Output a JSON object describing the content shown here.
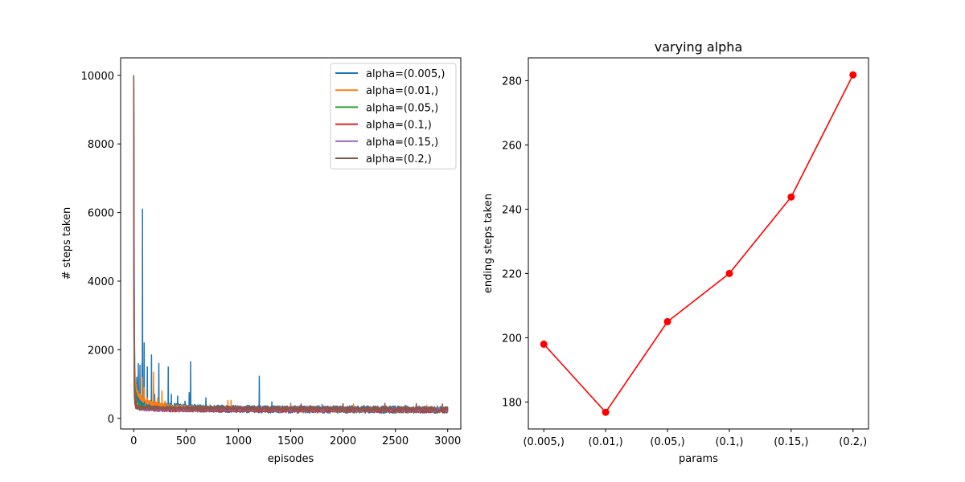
{
  "chart_data": [
    {
      "type": "line",
      "title": "",
      "xlabel": "episodes",
      "ylabel": "# steps taken",
      "xlim": [
        -125,
        3125
      ],
      "ylim": [
        -310,
        10510
      ],
      "xticks": [
        0,
        500,
        1000,
        1500,
        2000,
        2500,
        3000
      ],
      "xtick_labels": [
        "0",
        "500",
        "1000",
        "1500",
        "2000",
        "2500",
        "3000"
      ],
      "yticks": [
        0,
        2000,
        4000,
        6000,
        8000,
        10000
      ],
      "ytick_labels": [
        "0",
        "2000",
        "4000",
        "6000",
        "8000",
        "10000"
      ],
      "grid": false,
      "legend_position": "top-right",
      "series": [
        {
          "name": "alpha=(0.005,)",
          "color": "#1f77b4",
          "initial": 10000,
          "baseline": 250,
          "noise": 110,
          "points": [
            [
              0,
              10000
            ],
            [
              3,
              6000
            ],
            [
              6,
              3000
            ],
            [
              10,
              1500
            ],
            [
              15,
              900
            ],
            [
              20,
              700
            ],
            [
              30,
              600
            ],
            [
              40,
              550
            ],
            [
              60,
              480
            ],
            [
              80,
              450
            ],
            [
              120,
              420
            ],
            [
              200,
              380
            ],
            [
              300,
              340
            ],
            [
              500,
              300
            ],
            [
              800,
              280
            ],
            [
              1200,
              265
            ],
            [
              3000,
              250
            ]
          ],
          "spikes": [
            [
              30,
              1200
            ],
            [
              45,
              1600
            ],
            [
              60,
              1550
            ],
            [
              80,
              1600
            ],
            [
              85,
              6100
            ],
            [
              100,
              2200
            ],
            [
              130,
              1500
            ],
            [
              170,
              1850
            ],
            [
              200,
              700
            ],
            [
              240,
              1600
            ],
            [
              300,
              500
            ],
            [
              330,
              1500
            ],
            [
              360,
              700
            ],
            [
              420,
              650
            ],
            [
              490,
              500
            ],
            [
              530,
              750
            ],
            [
              545,
              1650
            ],
            [
              690,
              600
            ],
            [
              1200,
              1230
            ],
            [
              1320,
              480
            ],
            [
              1500,
              430
            ],
            [
              1800,
              400
            ],
            [
              2200,
              380
            ],
            [
              2600,
              380
            ],
            [
              2900,
              360
            ]
          ]
        },
        {
          "name": "alpha=(0.01,)",
          "color": "#ff7f0e",
          "initial": 9900,
          "baseline": 240,
          "noise": 70,
          "points": [
            [
              0,
              9900
            ],
            [
              2,
              6700
            ],
            [
              5,
              2500
            ],
            [
              10,
              1400
            ],
            [
              20,
              900
            ],
            [
              40,
              700
            ],
            [
              80,
              550
            ],
            [
              150,
              450
            ],
            [
              250,
              380
            ],
            [
              400,
              320
            ],
            [
              700,
              280
            ],
            [
              1200,
              255
            ],
            [
              3000,
              240
            ]
          ],
          "spikes": [
            [
              12,
              1450
            ],
            [
              25,
              1000
            ],
            [
              40,
              800
            ],
            [
              60,
              700
            ],
            [
              80,
              1200
            ],
            [
              100,
              900
            ],
            [
              130,
              600
            ],
            [
              160,
              500
            ],
            [
              190,
              1350
            ],
            [
              230,
              600
            ],
            [
              270,
              800
            ],
            [
              300,
              500
            ],
            [
              900,
              520
            ],
            [
              930,
              520
            ],
            [
              1500,
              400
            ],
            [
              2100,
              420
            ],
            [
              2800,
              380
            ]
          ]
        },
        {
          "name": "alpha=(0.05,)",
          "color": "#2ca02c",
          "initial": 9950,
          "baseline": 235,
          "noise": 55,
          "points": [
            [
              0,
              9950
            ],
            [
              2,
              4900
            ],
            [
              5,
              2000
            ],
            [
              10,
              1000
            ],
            [
              20,
              600
            ],
            [
              40,
              420
            ],
            [
              80,
              330
            ],
            [
              200,
              280
            ],
            [
              600,
              255
            ],
            [
              3000,
              235
            ]
          ],
          "spikes": [
            [
              8,
              1200
            ],
            [
              15,
              800
            ],
            [
              30,
              500
            ],
            [
              60,
              400
            ],
            [
              150,
              350
            ],
            [
              400,
              330
            ]
          ]
        },
        {
          "name": "alpha=(0.1,)",
          "color": "#d62728",
          "initial": 9800,
          "baseline": 220,
          "noise": 50,
          "points": [
            [
              0,
              9800
            ],
            [
              2,
              3000
            ],
            [
              5,
              1200
            ],
            [
              10,
              700
            ],
            [
              20,
              450
            ],
            [
              40,
              330
            ],
            [
              100,
              270
            ],
            [
              300,
              240
            ],
            [
              3000,
              220
            ]
          ],
          "spikes": [
            [
              6,
              900
            ],
            [
              12,
              600
            ],
            [
              25,
              420
            ]
          ]
        },
        {
          "name": "alpha=(0.15,)",
          "color": "#9467bd",
          "initial": 9700,
          "baseline": 250,
          "noise": 55,
          "points": [
            [
              0,
              9700
            ],
            [
              2,
              4100
            ],
            [
              5,
              1000
            ],
            [
              10,
              500
            ],
            [
              20,
              350
            ],
            [
              40,
              300
            ],
            [
              100,
              270
            ],
            [
              3000,
              250
            ]
          ],
          "spikes": [
            [
              4,
              4100
            ],
            [
              8,
              700
            ],
            [
              15,
              400
            ]
          ]
        },
        {
          "name": "alpha=(0.2,)",
          "color": "#8c564b",
          "initial": 10000,
          "baseline": 275,
          "noise": 65,
          "points": [
            [
              0,
              10000
            ],
            [
              2,
              3500
            ],
            [
              5,
              900
            ],
            [
              10,
              450
            ],
            [
              20,
              330
            ],
            [
              50,
              300
            ],
            [
              3000,
              275
            ]
          ],
          "spikes": [
            [
              3,
              3500
            ],
            [
              7,
              600
            ],
            [
              1600,
              420
            ],
            [
              2000,
              430
            ],
            [
              2400,
              440
            ],
            [
              2700,
              430
            ],
            [
              2950,
              420
            ]
          ]
        }
      ]
    },
    {
      "type": "line",
      "title": "varying alpha",
      "xlabel": "params",
      "ylabel": "ending steps taken",
      "grid": false,
      "categories": [
        "(0.005,)",
        "(0.01,)",
        "(0.05,)",
        "(0.1,)",
        "(0.15,)",
        "(0.2,)"
      ],
      "values": [
        198,
        176.8,
        205,
        220,
        243.8,
        281.8
      ],
      "ylim": [
        171.6,
        287.1
      ],
      "yticks": [
        180,
        200,
        220,
        240,
        260,
        280
      ],
      "ytick_labels": [
        "180",
        "200",
        "220",
        "240",
        "260",
        "280"
      ],
      "color": "#ff0000"
    }
  ]
}
